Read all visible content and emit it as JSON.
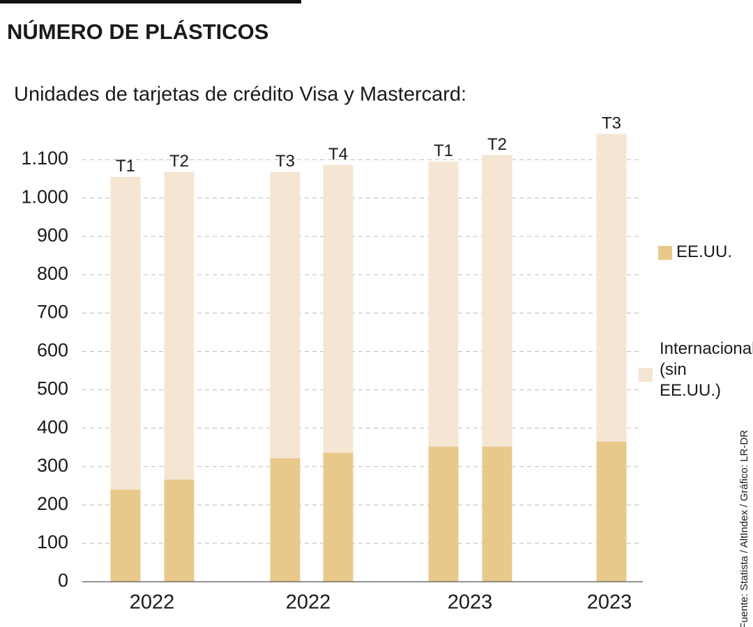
{
  "chart_data": {
    "type": "stacked_bar",
    "title": "NÚMERO DE PLÁSTICOS",
    "subtitle": "Unidades de tarjetas de crédito Visa y Mastercard:",
    "categories": [
      "T1",
      "T2",
      "T3",
      "T4",
      "T1",
      "T2",
      "T3"
    ],
    "years": [
      "2022",
      "2022",
      "2023",
      "2023"
    ],
    "series": [
      {
        "name": "EE.UU.",
        "color": "#e8c98b",
        "values": [
          240,
          266,
          322,
          336,
          352,
          352,
          365
        ]
      },
      {
        "name": "Internacional (sin EE.UU.)",
        "color": "#f5e5d3",
        "values": [
          815,
          802,
          746,
          750,
          743,
          760,
          802
        ]
      }
    ],
    "ylim": [
      0,
      1200
    ],
    "yticks": [
      0,
      100,
      200,
      300,
      400,
      500,
      600,
      700,
      800,
      900,
      {
        "value": 1000,
        "label": "1.000"
      },
      {
        "value": 1100,
        "label": "1.100"
      }
    ],
    "grid": true,
    "source": "Fuente: Statista / AltIndex / Gráfico: LR-DR"
  }
}
